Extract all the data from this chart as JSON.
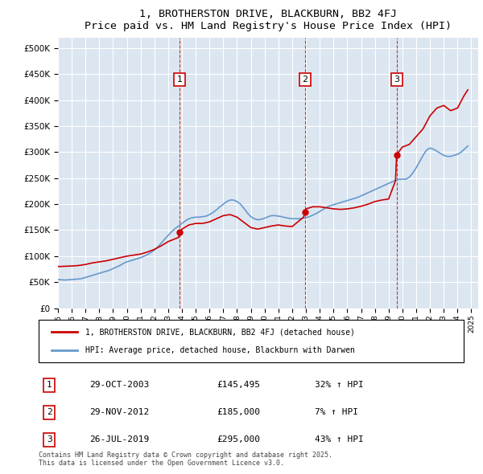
{
  "title": "1, BROTHERSTON DRIVE, BLACKBURN, BB2 4FJ",
  "subtitle": "Price paid vs. HM Land Registry's House Price Index (HPI)",
  "ylim": [
    0,
    520000
  ],
  "yticks": [
    0,
    50000,
    100000,
    150000,
    200000,
    250000,
    300000,
    350000,
    400000,
    450000,
    500000
  ],
  "sale_dates": [
    "2003-10-29",
    "2012-11-29",
    "2019-07-26"
  ],
  "sale_prices": [
    145495,
    185000,
    295000
  ],
  "sale_labels": [
    "1",
    "2",
    "3"
  ],
  "sale_color": "#cc0000",
  "hpi_color": "#6699cc",
  "background_color": "#dce6f1",
  "plot_bg_color": "#dce6f1",
  "grid_color": "#ffffff",
  "legend_entries": [
    "1, BROTHERSTON DRIVE, BLACKBURN, BB2 4FJ (detached house)",
    "HPI: Average price, detached house, Blackburn with Darwen"
  ],
  "table_entries": [
    {
      "label": "1",
      "date": "29-OCT-2003",
      "price": "£145,495",
      "hpi": "32% ↑ HPI"
    },
    {
      "label": "2",
      "date": "29-NOV-2012",
      "price": "£185,000",
      "hpi": "7% ↑ HPI"
    },
    {
      "label": "3",
      "date": "26-JUL-2019",
      "price": "£295,000",
      "hpi": "43% ↑ HPI"
    }
  ],
  "footer": "Contains HM Land Registry data © Crown copyright and database right 2025.\nThis data is licensed under the Open Government Licence v3.0.",
  "hpi_time": [
    1995.0,
    1995.25,
    1995.5,
    1995.75,
    1996.0,
    1996.25,
    1996.5,
    1996.75,
    1997.0,
    1997.25,
    1997.5,
    1997.75,
    1998.0,
    1998.25,
    1998.5,
    1998.75,
    1999.0,
    1999.25,
    1999.5,
    1999.75,
    2000.0,
    2000.25,
    2000.5,
    2000.75,
    2001.0,
    2001.25,
    2001.5,
    2001.75,
    2002.0,
    2002.25,
    2002.5,
    2002.75,
    2003.0,
    2003.25,
    2003.5,
    2003.75,
    2004.0,
    2004.25,
    2004.5,
    2004.75,
    2005.0,
    2005.25,
    2005.5,
    2005.75,
    2006.0,
    2006.25,
    2006.5,
    2006.75,
    2007.0,
    2007.25,
    2007.5,
    2007.75,
    2008.0,
    2008.25,
    2008.5,
    2008.75,
    2009.0,
    2009.25,
    2009.5,
    2009.75,
    2010.0,
    2010.25,
    2010.5,
    2010.75,
    2011.0,
    2011.25,
    2011.5,
    2011.75,
    2012.0,
    2012.25,
    2012.5,
    2012.75,
    2013.0,
    2013.25,
    2013.5,
    2013.75,
    2014.0,
    2014.25,
    2014.5,
    2014.75,
    2015.0,
    2015.25,
    2015.5,
    2015.75,
    2016.0,
    2016.25,
    2016.5,
    2016.75,
    2017.0,
    2017.25,
    2017.5,
    2017.75,
    2018.0,
    2018.25,
    2018.5,
    2018.75,
    2019.0,
    2019.25,
    2019.5,
    2019.75,
    2020.0,
    2020.25,
    2020.5,
    2020.75,
    2021.0,
    2021.25,
    2021.5,
    2021.75,
    2022.0,
    2022.25,
    2022.5,
    2022.75,
    2023.0,
    2023.25,
    2023.5,
    2023.75,
    2024.0,
    2024.25,
    2024.5,
    2024.75
  ],
  "hpi_values": [
    55000,
    54500,
    54000,
    54500,
    55000,
    55500,
    56000,
    57000,
    59000,
    61000,
    63000,
    65000,
    67000,
    69000,
    71000,
    73000,
    76000,
    79000,
    82000,
    86000,
    89000,
    91000,
    93000,
    95000,
    97000,
    100000,
    103000,
    107000,
    112000,
    118000,
    125000,
    133000,
    140000,
    147000,
    153000,
    158000,
    163000,
    168000,
    172000,
    174000,
    175000,
    175000,
    176000,
    177000,
    180000,
    184000,
    189000,
    195000,
    200000,
    205000,
    208000,
    208000,
    205000,
    200000,
    192000,
    183000,
    176000,
    172000,
    170000,
    171000,
    173000,
    176000,
    178000,
    178000,
    177000,
    176000,
    174000,
    173000,
    172000,
    172000,
    172000,
    173000,
    174000,
    176000,
    179000,
    182000,
    186000,
    190000,
    194000,
    197000,
    199000,
    201000,
    203000,
    205000,
    207000,
    209000,
    211000,
    213000,
    216000,
    219000,
    222000,
    225000,
    228000,
    231000,
    234000,
    237000,
    240000,
    243000,
    246000,
    248000,
    248000,
    248000,
    252000,
    260000,
    270000,
    282000,
    294000,
    304000,
    308000,
    306000,
    302000,
    298000,
    294000,
    292000,
    292000,
    294000,
    296000,
    300000,
    306000,
    312000
  ],
  "property_time": [
    1995.0,
    1995.5,
    1996.0,
    1996.5,
    1997.0,
    1997.5,
    1998.0,
    1998.5,
    1999.0,
    1999.5,
    2000.0,
    2000.5,
    2001.0,
    2001.5,
    2002.0,
    2002.5,
    2003.0,
    2003.75,
    2003.83,
    2004.0,
    2004.5,
    2005.0,
    2005.5,
    2006.0,
    2006.5,
    2007.0,
    2007.5,
    2008.0,
    2008.5,
    2009.0,
    2009.5,
    2010.0,
    2010.5,
    2011.0,
    2011.5,
    2012.0,
    2012.83,
    2012.92,
    2013.0,
    2013.5,
    2014.0,
    2014.5,
    2015.0,
    2015.5,
    2016.0,
    2016.5,
    2017.0,
    2017.5,
    2018.0,
    2018.5,
    2019.0,
    2019.5,
    2019.58,
    2020.0,
    2020.5,
    2021.0,
    2021.5,
    2022.0,
    2022.5,
    2023.0,
    2023.5,
    2024.0,
    2024.5,
    2024.75
  ],
  "property_values": [
    80000,
    80500,
    81000,
    82000,
    84000,
    87000,
    89000,
    91000,
    94000,
    97000,
    100000,
    102000,
    104000,
    108000,
    113000,
    120000,
    128000,
    136000,
    145495,
    152000,
    160000,
    163000,
    163000,
    166000,
    172000,
    178000,
    180000,
    175000,
    165000,
    155000,
    152000,
    155000,
    158000,
    160000,
    158000,
    157000,
    175000,
    185000,
    191000,
    195000,
    195000,
    193000,
    191000,
    190000,
    191000,
    193000,
    196000,
    200000,
    205000,
    208000,
    210000,
    245000,
    295000,
    310000,
    315000,
    330000,
    345000,
    370000,
    385000,
    390000,
    380000,
    385000,
    410000,
    420000
  ]
}
